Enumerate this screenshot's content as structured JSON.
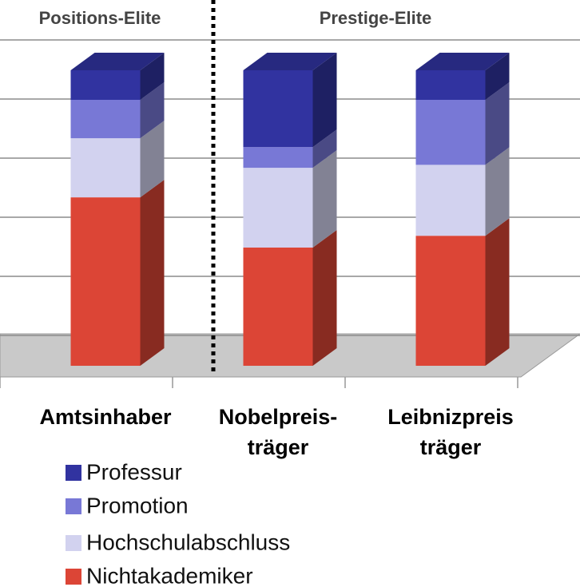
{
  "chart_data": {
    "type": "bar3d_stacked",
    "groups": [
      "Positions-Elite",
      "Prestige-Elite"
    ],
    "categories": [
      "Amtsinhaber",
      "Nobelpreis-\nträger",
      "Leibnizpreis\nträger"
    ],
    "series": [
      {
        "name": "Nichtakademiker",
        "color": "#dc4536",
        "values": [
          57,
          40,
          44
        ]
      },
      {
        "name": "Hochschulabschluss",
        "color": "#d2d2ef",
        "values": [
          20,
          27,
          24
        ]
      },
      {
        "name": "Promotion",
        "color": "#7878d6",
        "values": [
          13,
          7,
          22
        ]
      },
      {
        "name": "Professur",
        "color": "#3133a0",
        "values": [
          10,
          26,
          10
        ]
      }
    ],
    "ylim": [
      0,
      100
    ],
    "yticks": [
      0,
      20,
      40,
      60,
      80,
      100
    ],
    "grid": true
  }
}
